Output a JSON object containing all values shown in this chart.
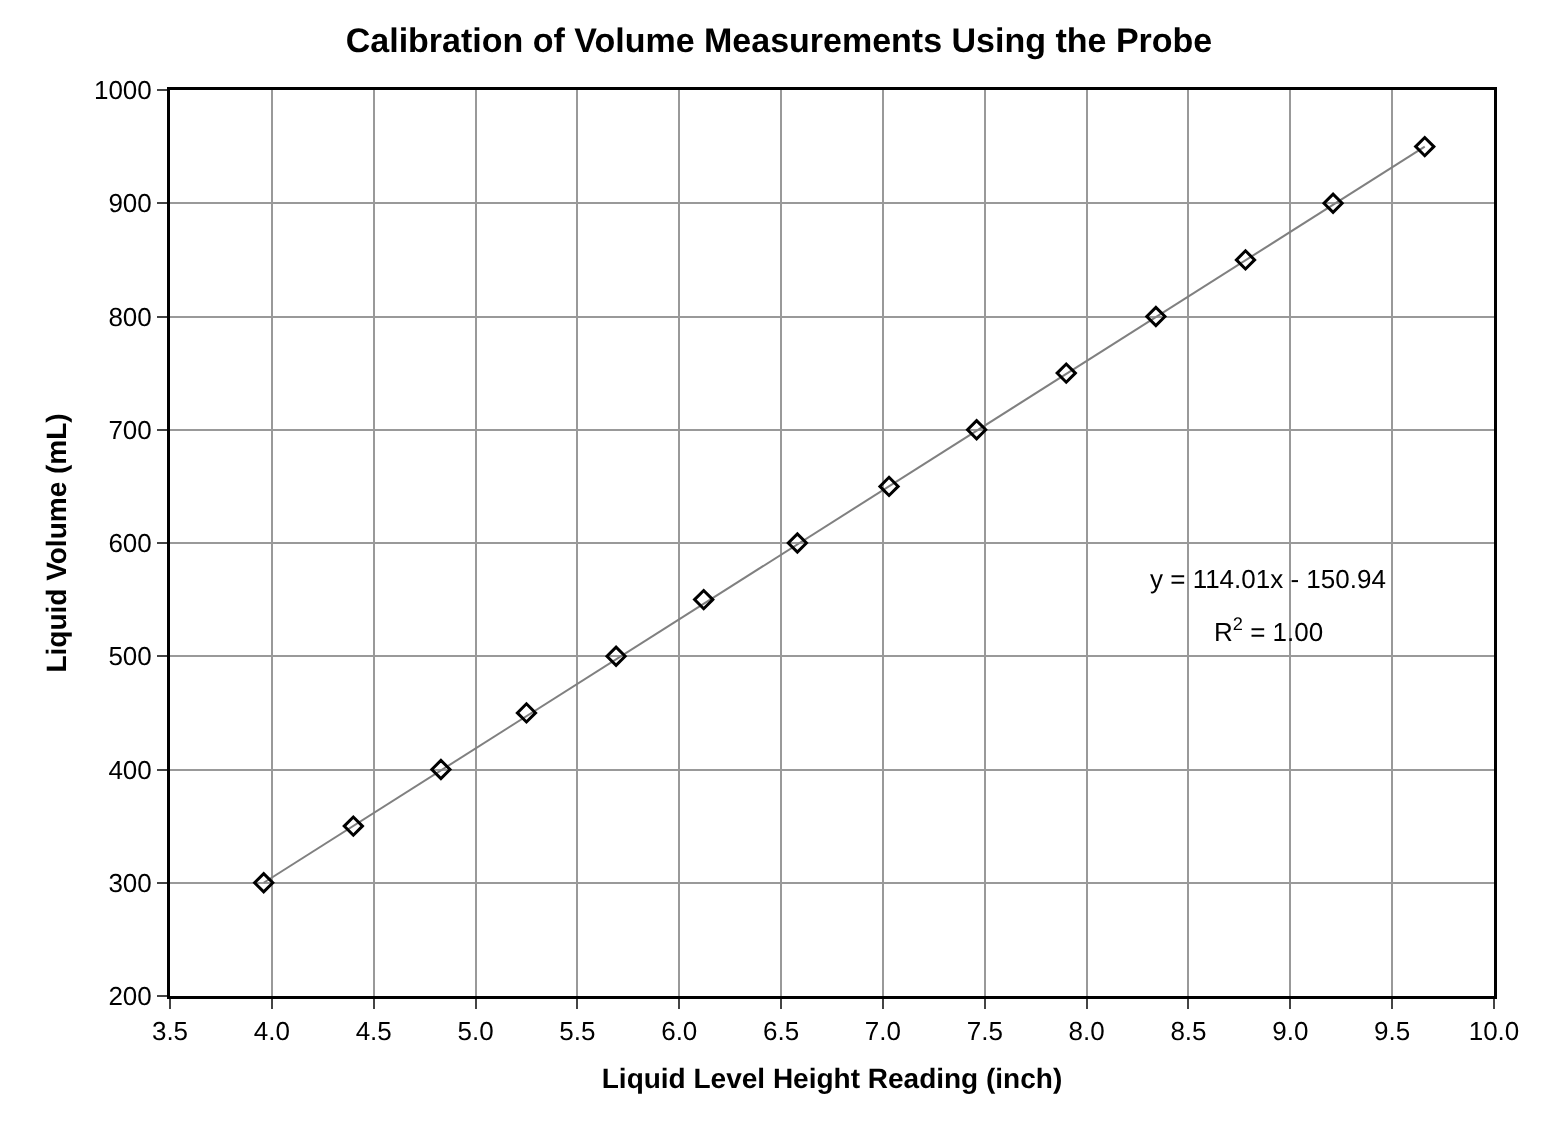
{
  "chart_data": {
    "type": "scatter",
    "title": "Calibration of Volume Measurements Using the Probe",
    "xlabel": "Liquid Level Height Reading (inch)",
    "ylabel": "Liquid Volume (mL)",
    "xlim": [
      3.5,
      10.0
    ],
    "xticks": [
      {
        "value": 3.5,
        "label": "3.5"
      },
      {
        "value": 4,
        "label": "4.0"
      },
      {
        "value": 4.5,
        "label": "4.5"
      },
      {
        "value": 5,
        "label": "5.0"
      },
      {
        "value": 5.5,
        "label": "5.5"
      },
      {
        "value": 6,
        "label": "6.0"
      },
      {
        "value": 6.5,
        "label": "6.5"
      },
      {
        "value": 7,
        "label": "7.0"
      },
      {
        "value": 7.5,
        "label": "7.5"
      },
      {
        "value": 8,
        "label": "8.0"
      },
      {
        "value": 8.5,
        "label": "8.5"
      },
      {
        "value": 9,
        "label": "9.0"
      },
      {
        "value": 9.5,
        "label": "9.5"
      },
      {
        "value": 10,
        "label": "10.0"
      }
    ],
    "ylim": [
      200,
      1000
    ],
    "yticks": [
      200,
      300,
      400,
      500,
      600,
      700,
      800,
      900,
      1000
    ],
    "grid": true,
    "annotations": [
      "y = 114.01x - 150.94",
      "R$^{2}$ = 1.00"
    ],
    "series": [
      {
        "type": "line",
        "color": "#808080",
        "marker": "none",
        "line_style": "solid",
        "x": [
          3.96,
          9.66
        ],
        "values": [
          300,
          950
        ]
      },
      {
        "color": "#000000",
        "marker": "diamond",
        "x": [
          3.96,
          4.4,
          4.83,
          5.25,
          5.69,
          6.12,
          6.58,
          7.03,
          7.46,
          7.9,
          8.34,
          8.78,
          9.21,
          9.66
        ],
        "values": [
          300,
          350,
          400,
          450,
          500,
          550,
          600,
          650,
          700,
          750,
          800,
          850,
          900,
          950
        ]
      }
    ]
  }
}
